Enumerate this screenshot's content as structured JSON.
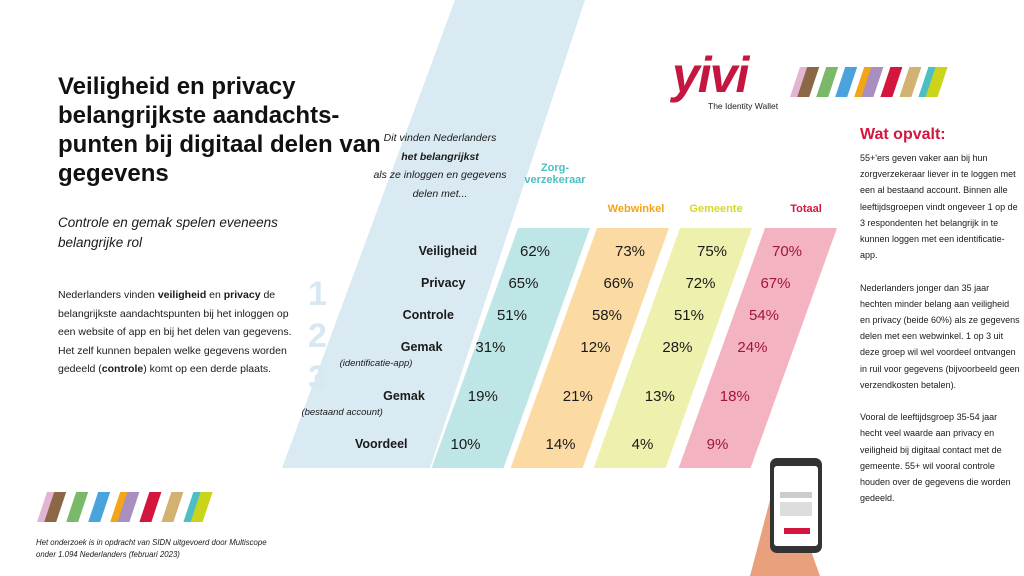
{
  "title": "Veiligheid en privacy belangrijkste aandachts-punten bij digitaal delen van gegevens",
  "subtitle": "Controle en gemak spelen eveneens belangrijke rol",
  "body": {
    "p1": "Nederlanders vinden ",
    "b1": "veiligheid",
    "p2": " en ",
    "b2": "privacy",
    "p3": " de belangrijkste aandachtspunten bij het inloggen op een website of app en bij het delen van gegevens. Het zelf kunnen bepalen welke gegevens worden gedeeld (",
    "b3": "controle",
    "p4": ") komt op een derde plaats."
  },
  "rank_numbers": [
    "1",
    "2",
    "3"
  ],
  "intro": {
    "p1": "Dit vinden Nederlanders",
    "b": "het belangrijkst",
    "p2": "als ze inloggen en gegevens delen met..."
  },
  "logo": {
    "text": "yivi",
    "tagline": "The Identity Wallet"
  },
  "chart_data": {
    "type": "table",
    "columns": [
      {
        "name": "Zorg-\nverzekeraar",
        "color": "#4bbfc3",
        "fill": "#bfe6e7"
      },
      {
        "name": "Webwinkel",
        "color": "#f2a516",
        "fill": "#fbdba3"
      },
      {
        "name": "Gemeente",
        "color": "#d4d82a",
        "fill": "#eef1ae"
      },
      {
        "name": "Totaal",
        "color": "#d4163f",
        "fill": "#f4b3c0"
      }
    ],
    "rows": [
      {
        "label": "Veiligheid",
        "sub": "",
        "values": [
          "62%",
          "73%",
          "75%",
          "70%"
        ]
      },
      {
        "label": "Privacy",
        "sub": "",
        "values": [
          "65%",
          "66%",
          "72%",
          "67%"
        ]
      },
      {
        "label": "Controle",
        "sub": "",
        "values": [
          "51%",
          "58%",
          "51%",
          "54%"
        ]
      },
      {
        "label": "Gemak",
        "sub": "(identificatie-app)",
        "values": [
          "31%",
          "12%",
          "28%",
          "24%"
        ]
      },
      {
        "label": "Gemak",
        "sub": "(bestaand account)",
        "values": [
          "19%",
          "21%",
          "13%",
          "18%"
        ]
      },
      {
        "label": "Voordeel",
        "sub": "",
        "values": [
          "10%",
          "14%",
          "4%",
          "9%"
        ]
      }
    ]
  },
  "wat_opvalt": {
    "title": "Wat opvalt:",
    "paragraphs": [
      "55+'ers geven vaker aan bij hun zorgverzekeraar liever in te loggen met een al bestaand account. Binnen alle leeftijdsgroepen vindt ongeveer 1 op de 3 respondenten het belangrijk in te kunnen loggen met een identificatie-app.",
      "Nederlanders jonger dan 35 jaar hechten minder belang aan veiligheid en privacy (beide 60%) als ze gegevens delen met een webwinkel. 1 op 3 uit deze groep wil wel voordeel ontvangen in ruil voor gegevens (bijvoorbeeld geen verzendkosten betalen).",
      "Vooral de leeftijdsgroep 35-54 jaar hecht veel waarde aan privacy en veiligheid bij digitaal contact met de gemeente. 55+ wil vooral controle houden over de gegevens die worden gedeeld."
    ]
  },
  "footnote": "Het onderzoek is in opdracht van SIDN uitgevoerd door Multiscope onder 1.094 Nederlanders (februari 2023)",
  "stripe_colors": [
    "#e3b5d3",
    "#8c6745",
    "#7ab86a",
    "#4aa3dc",
    "#f2a516",
    "#a98fbf",
    "#d4163f",
    "#d2b271",
    "#4bbfc3",
    "#c9d41a"
  ],
  "phone_logo": "yivi"
}
